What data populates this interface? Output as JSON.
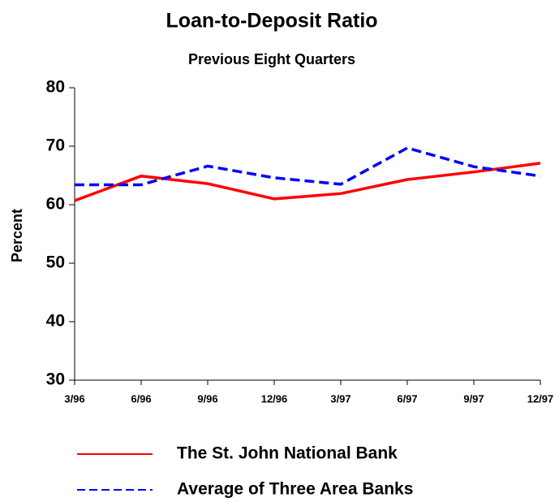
{
  "chart_data": {
    "type": "line",
    "title": "Loan-to-Deposit Ratio",
    "subtitle": "Previous Eight Quarters",
    "y_label": "Percent",
    "categories": [
      "3/96",
      "6/96",
      "9/96",
      "12/96",
      "3/97",
      "6/97",
      "9/97",
      "12/97"
    ],
    "series": [
      {
        "name": "The St. John National Bank",
        "color": "#ff0000",
        "dash": "solid",
        "values": [
          60.7,
          64.9,
          63.6,
          61.0,
          61.9,
          64.3,
          65.6,
          67.1
        ]
      },
      {
        "name": "Average of Three Area Banks",
        "color": "#0000ff",
        "dash": "dashed",
        "values": [
          63.4,
          63.4,
          66.6,
          64.6,
          63.5,
          69.7,
          66.5,
          64.9
        ]
      }
    ],
    "ylim": [
      30,
      80
    ],
    "yticks": [
      30,
      40,
      50,
      60,
      70,
      80
    ],
    "grid": false
  }
}
